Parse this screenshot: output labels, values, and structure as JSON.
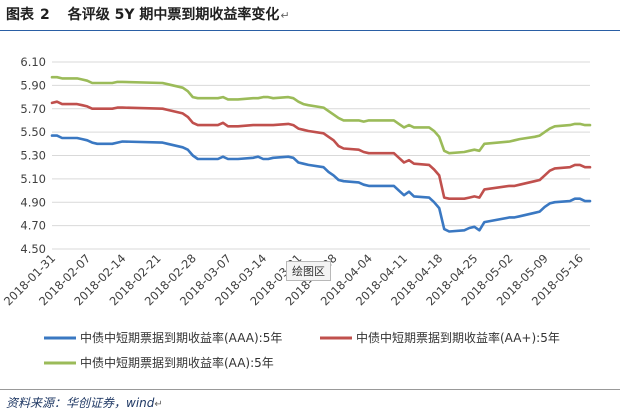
{
  "caption": {
    "prefix": "图表",
    "number": "2",
    "title": "各评级 5Y 期中票到期收益率变化",
    "mark": "↵"
  },
  "source": {
    "text": "资料来源：华创证券，wind",
    "mark": "↵"
  },
  "overlay_tag": "绘图区",
  "chart_data": {
    "type": "line",
    "title": "",
    "xlabel": "",
    "ylabel": "",
    "ylim": [
      4.5,
      6.1
    ],
    "yticks": [
      "6.10",
      "5.90",
      "5.70",
      "5.50",
      "5.30",
      "5.10",
      "4.90",
      "4.70",
      "4.50"
    ],
    "grid": true,
    "legend_position": "bottom",
    "x_tick_labels": [
      "2018-01-31",
      "2018-02-07",
      "2018-02-14",
      "2018-02-21",
      "2018-02-28",
      "2018-03-07",
      "2018-03-14",
      "2018-03-21",
      "2018-03-28",
      "2018-04-04",
      "2018-04-11",
      "2018-04-18",
      "2018-04-25",
      "2018-05-02",
      "2018-05-09",
      "2018-05-16"
    ],
    "x_start": "2018-01-31",
    "x_end": "2018-05-18",
    "series": [
      {
        "name": "中债中短期票据到期收益率(AAA):5年",
        "color": "#3a78c2",
        "points": [
          [
            "2018-01-31",
            5.47
          ],
          [
            "2018-02-01",
            5.47
          ],
          [
            "2018-02-02",
            5.45
          ],
          [
            "2018-02-05",
            5.45
          ],
          [
            "2018-02-06",
            5.44
          ],
          [
            "2018-02-07",
            5.43
          ],
          [
            "2018-02-08",
            5.41
          ],
          [
            "2018-02-09",
            5.4
          ],
          [
            "2018-02-12",
            5.4
          ],
          [
            "2018-02-13",
            5.41
          ],
          [
            "2018-02-14",
            5.42
          ],
          [
            "2018-02-22",
            5.41
          ],
          [
            "2018-02-23",
            5.4
          ],
          [
            "2018-02-26",
            5.37
          ],
          [
            "2018-02-27",
            5.35
          ],
          [
            "2018-02-28",
            5.3
          ],
          [
            "2018-03-01",
            5.27
          ],
          [
            "2018-03-02",
            5.27
          ],
          [
            "2018-03-05",
            5.27
          ],
          [
            "2018-03-06",
            5.29
          ],
          [
            "2018-03-07",
            5.27
          ],
          [
            "2018-03-08",
            5.27
          ],
          [
            "2018-03-09",
            5.27
          ],
          [
            "2018-03-12",
            5.28
          ],
          [
            "2018-03-13",
            5.29
          ],
          [
            "2018-03-14",
            5.27
          ],
          [
            "2018-03-15",
            5.27
          ],
          [
            "2018-03-16",
            5.28
          ],
          [
            "2018-03-19",
            5.29
          ],
          [
            "2018-03-20",
            5.28
          ],
          [
            "2018-03-21",
            5.24
          ],
          [
            "2018-03-22",
            5.23
          ],
          [
            "2018-03-23",
            5.22
          ],
          [
            "2018-03-26",
            5.2
          ],
          [
            "2018-03-27",
            5.16
          ],
          [
            "2018-03-28",
            5.13
          ],
          [
            "2018-03-29",
            5.09
          ],
          [
            "2018-03-30",
            5.08
          ],
          [
            "2018-04-02",
            5.07
          ],
          [
            "2018-04-03",
            5.05
          ],
          [
            "2018-04-04",
            5.04
          ],
          [
            "2018-04-09",
            5.04
          ],
          [
            "2018-04-10",
            5.0
          ],
          [
            "2018-04-11",
            4.96
          ],
          [
            "2018-04-12",
            4.99
          ],
          [
            "2018-04-13",
            4.95
          ],
          [
            "2018-04-16",
            4.94
          ],
          [
            "2018-04-17",
            4.9
          ],
          [
            "2018-04-18",
            4.85
          ],
          [
            "2018-04-19",
            4.67
          ],
          [
            "2018-04-20",
            4.65
          ],
          [
            "2018-04-23",
            4.66
          ],
          [
            "2018-04-24",
            4.68
          ],
          [
            "2018-04-25",
            4.69
          ],
          [
            "2018-04-26",
            4.66
          ],
          [
            "2018-04-27",
            4.73
          ],
          [
            "2018-05-02",
            4.77
          ],
          [
            "2018-05-03",
            4.77
          ],
          [
            "2018-05-04",
            4.78
          ],
          [
            "2018-05-07",
            4.81
          ],
          [
            "2018-05-08",
            4.82
          ],
          [
            "2018-05-09",
            4.86
          ],
          [
            "2018-05-10",
            4.89
          ],
          [
            "2018-05-11",
            4.9
          ],
          [
            "2018-05-14",
            4.91
          ],
          [
            "2018-05-15",
            4.93
          ],
          [
            "2018-05-16",
            4.93
          ],
          [
            "2018-05-17",
            4.91
          ],
          [
            "2018-05-18",
            4.91
          ]
        ]
      },
      {
        "name": "中债中短期票据到期收益率(AA+):5年",
        "color": "#c0504d",
        "points": [
          [
            "2018-01-31",
            5.75
          ],
          [
            "2018-02-01",
            5.76
          ],
          [
            "2018-02-02",
            5.74
          ],
          [
            "2018-02-05",
            5.74
          ],
          [
            "2018-02-06",
            5.73
          ],
          [
            "2018-02-07",
            5.72
          ],
          [
            "2018-02-08",
            5.7
          ],
          [
            "2018-02-09",
            5.7
          ],
          [
            "2018-02-12",
            5.7
          ],
          [
            "2018-02-13",
            5.71
          ],
          [
            "2018-02-14",
            5.71
          ],
          [
            "2018-02-22",
            5.7
          ],
          [
            "2018-02-23",
            5.69
          ],
          [
            "2018-02-26",
            5.66
          ],
          [
            "2018-02-27",
            5.63
          ],
          [
            "2018-02-28",
            5.58
          ],
          [
            "2018-03-01",
            5.56
          ],
          [
            "2018-03-02",
            5.56
          ],
          [
            "2018-03-05",
            5.56
          ],
          [
            "2018-03-06",
            5.58
          ],
          [
            "2018-03-07",
            5.55
          ],
          [
            "2018-03-08",
            5.55
          ],
          [
            "2018-03-09",
            5.55
          ],
          [
            "2018-03-12",
            5.56
          ],
          [
            "2018-03-13",
            5.56
          ],
          [
            "2018-03-14",
            5.56
          ],
          [
            "2018-03-15",
            5.56
          ],
          [
            "2018-03-16",
            5.56
          ],
          [
            "2018-03-19",
            5.57
          ],
          [
            "2018-03-20",
            5.56
          ],
          [
            "2018-03-21",
            5.53
          ],
          [
            "2018-03-22",
            5.52
          ],
          [
            "2018-03-23",
            5.51
          ],
          [
            "2018-03-26",
            5.49
          ],
          [
            "2018-03-27",
            5.46
          ],
          [
            "2018-03-28",
            5.43
          ],
          [
            "2018-03-29",
            5.38
          ],
          [
            "2018-03-30",
            5.36
          ],
          [
            "2018-04-02",
            5.35
          ],
          [
            "2018-04-03",
            5.33
          ],
          [
            "2018-04-04",
            5.32
          ],
          [
            "2018-04-09",
            5.32
          ],
          [
            "2018-04-10",
            5.28
          ],
          [
            "2018-04-11",
            5.24
          ],
          [
            "2018-04-12",
            5.26
          ],
          [
            "2018-04-13",
            5.23
          ],
          [
            "2018-04-16",
            5.22
          ],
          [
            "2018-04-17",
            5.18
          ],
          [
            "2018-04-18",
            5.13
          ],
          [
            "2018-04-19",
            4.94
          ],
          [
            "2018-04-20",
            4.93
          ],
          [
            "2018-04-23",
            4.93
          ],
          [
            "2018-04-24",
            4.94
          ],
          [
            "2018-04-25",
            4.95
          ],
          [
            "2018-04-26",
            4.94
          ],
          [
            "2018-04-27",
            5.01
          ],
          [
            "2018-05-02",
            5.04
          ],
          [
            "2018-05-03",
            5.04
          ],
          [
            "2018-05-04",
            5.05
          ],
          [
            "2018-05-07",
            5.08
          ],
          [
            "2018-05-08",
            5.09
          ],
          [
            "2018-05-09",
            5.13
          ],
          [
            "2018-05-10",
            5.17
          ],
          [
            "2018-05-11",
            5.19
          ],
          [
            "2018-05-14",
            5.2
          ],
          [
            "2018-05-15",
            5.22
          ],
          [
            "2018-05-16",
            5.22
          ],
          [
            "2018-05-17",
            5.2
          ],
          [
            "2018-05-18",
            5.2
          ]
        ]
      },
      {
        "name": "中债中短期票据到期收益率(AA):5年",
        "color": "#9bbb59",
        "points": [
          [
            "2018-01-31",
            5.97
          ],
          [
            "2018-02-01",
            5.97
          ],
          [
            "2018-02-02",
            5.96
          ],
          [
            "2018-02-05",
            5.96
          ],
          [
            "2018-02-06",
            5.95
          ],
          [
            "2018-02-07",
            5.94
          ],
          [
            "2018-02-08",
            5.92
          ],
          [
            "2018-02-09",
            5.92
          ],
          [
            "2018-02-12",
            5.92
          ],
          [
            "2018-02-13",
            5.93
          ],
          [
            "2018-02-14",
            5.93
          ],
          [
            "2018-02-22",
            5.92
          ],
          [
            "2018-02-23",
            5.91
          ],
          [
            "2018-02-26",
            5.88
          ],
          [
            "2018-02-27",
            5.85
          ],
          [
            "2018-02-28",
            5.8
          ],
          [
            "2018-03-01",
            5.79
          ],
          [
            "2018-03-02",
            5.79
          ],
          [
            "2018-03-05",
            5.79
          ],
          [
            "2018-03-06",
            5.8
          ],
          [
            "2018-03-07",
            5.78
          ],
          [
            "2018-03-08",
            5.78
          ],
          [
            "2018-03-09",
            5.78
          ],
          [
            "2018-03-12",
            5.79
          ],
          [
            "2018-03-13",
            5.79
          ],
          [
            "2018-03-14",
            5.8
          ],
          [
            "2018-03-15",
            5.8
          ],
          [
            "2018-03-16",
            5.79
          ],
          [
            "2018-03-19",
            5.8
          ],
          [
            "2018-03-20",
            5.79
          ],
          [
            "2018-03-21",
            5.76
          ],
          [
            "2018-03-22",
            5.74
          ],
          [
            "2018-03-23",
            5.73
          ],
          [
            "2018-03-26",
            5.71
          ],
          [
            "2018-03-27",
            5.68
          ],
          [
            "2018-03-28",
            5.65
          ],
          [
            "2018-03-29",
            5.62
          ],
          [
            "2018-03-30",
            5.6
          ],
          [
            "2018-04-02",
            5.6
          ],
          [
            "2018-04-03",
            5.59
          ],
          [
            "2018-04-04",
            5.6
          ],
          [
            "2018-04-09",
            5.6
          ],
          [
            "2018-04-10",
            5.57
          ],
          [
            "2018-04-11",
            5.54
          ],
          [
            "2018-04-12",
            5.56
          ],
          [
            "2018-04-13",
            5.54
          ],
          [
            "2018-04-16",
            5.54
          ],
          [
            "2018-04-17",
            5.51
          ],
          [
            "2018-04-18",
            5.46
          ],
          [
            "2018-04-19",
            5.34
          ],
          [
            "2018-04-20",
            5.32
          ],
          [
            "2018-04-23",
            5.33
          ],
          [
            "2018-04-24",
            5.34
          ],
          [
            "2018-04-25",
            5.35
          ],
          [
            "2018-04-26",
            5.34
          ],
          [
            "2018-04-27",
            5.4
          ],
          [
            "2018-05-02",
            5.42
          ],
          [
            "2018-05-03",
            5.43
          ],
          [
            "2018-05-04",
            5.44
          ],
          [
            "2018-05-07",
            5.46
          ],
          [
            "2018-05-08",
            5.47
          ],
          [
            "2018-05-09",
            5.5
          ],
          [
            "2018-05-10",
            5.53
          ],
          [
            "2018-05-11",
            5.55
          ],
          [
            "2018-05-14",
            5.56
          ],
          [
            "2018-05-15",
            5.57
          ],
          [
            "2018-05-16",
            5.57
          ],
          [
            "2018-05-17",
            5.56
          ],
          [
            "2018-05-18",
            5.56
          ]
        ]
      }
    ]
  }
}
